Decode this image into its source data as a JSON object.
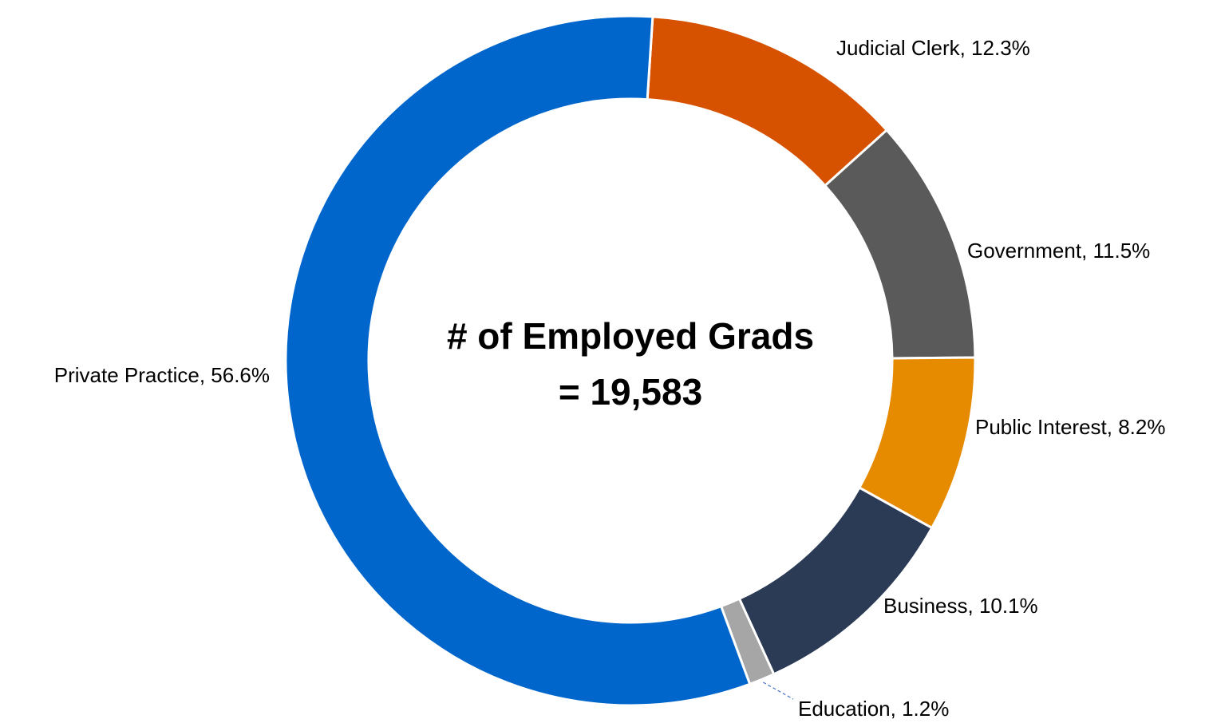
{
  "chart_data": {
    "type": "donut",
    "values": [
      12.3,
      11.5,
      8.2,
      10.1,
      1.2,
      56.6
    ],
    "value_labels": [
      "Judicial Clerk, 12.3%",
      "Government, 11.5%",
      "Public Interest, 8.2%",
      "Business, 10.1%",
      "Education, 1.2%",
      "Private Practice, 56.6%"
    ],
    "colors": [
      "#d65100",
      "#5a5a5a",
      "#e68a00",
      "#2b3a55",
      "#a6a6a6",
      "#0066cc"
    ],
    "center_text": [
      "# of Employed Grads",
      "= 19,583"
    ]
  }
}
